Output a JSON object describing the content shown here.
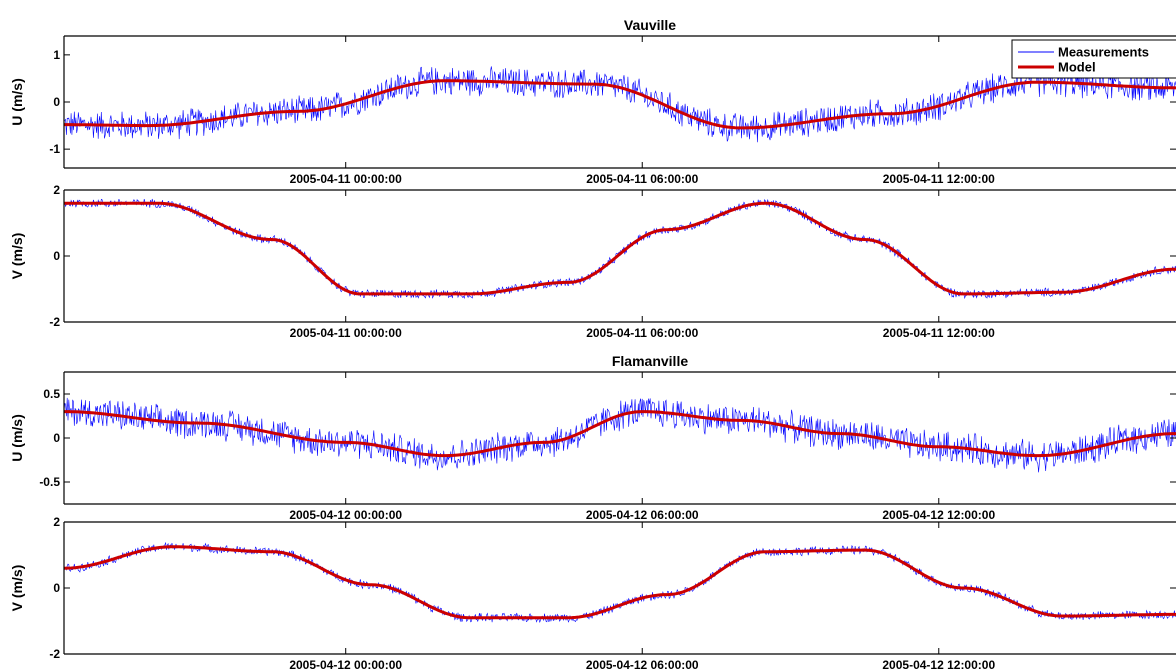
{
  "chart_data": [
    {
      "type": "line",
      "title": "Vauville",
      "ylabel": "U (m/s)",
      "ylim": [
        -1.4,
        1.4
      ],
      "yticks": [
        -1,
        0,
        1
      ],
      "xtick_labels": [
        "2005-04-11 00:00:00",
        "2005-04-11 06:00:00",
        "2005-04-11 12:00:00"
      ],
      "x_range_hours": [
        -5.7,
        16.8
      ],
      "legend": {
        "position": "top-right",
        "entries": [
          "Measurements",
          "Model"
        ]
      },
      "colors": {
        "Measurements": "#0000ff",
        "Model": "#cc0000"
      },
      "series": [
        {
          "name": "Model",
          "x_hours": [
            -5.7,
            -4,
            -1,
            2,
            5,
            8,
            11,
            14,
            16.8
          ],
          "values": [
            -0.48,
            -0.5,
            -0.2,
            0.45,
            0.38,
            -0.55,
            -0.25,
            0.42,
            0.3
          ]
        },
        {
          "name": "Measurements",
          "noise_amplitude": 0.35
        }
      ]
    },
    {
      "type": "line",
      "title": "",
      "ylabel": "V (m/s)",
      "ylim": [
        -2,
        2
      ],
      "yticks": [
        -2,
        0,
        2
      ],
      "xtick_labels": [
        "2005-04-11 00:00:00",
        "2005-04-11 06:00:00",
        "2005-04-11 12:00:00"
      ],
      "x_range_hours": [
        -5.7,
        16.8
      ],
      "series": [
        {
          "name": "Model",
          "x_hours": [
            -5.7,
            -3.8,
            -1.5,
            0.3,
            2.5,
            4.5,
            6.5,
            8.5,
            10.5,
            12.5,
            14.5,
            16.8
          ],
          "values": [
            1.6,
            1.6,
            0.5,
            -1.15,
            -1.15,
            -0.8,
            0.8,
            1.6,
            0.5,
            -1.15,
            -1.1,
            -0.4
          ]
        },
        {
          "name": "Measurements",
          "noise_amplitude": 0.15
        }
      ]
    },
    {
      "type": "line",
      "title": "Flamanville",
      "ylabel": "U (m/s)",
      "ylim": [
        -0.75,
        0.75
      ],
      "yticks": [
        -0.5,
        0,
        0.5
      ],
      "xtick_labels": [
        "2005-04-12 00:00:00",
        "2005-04-12 06:00:00",
        "2005-04-12 12:00:00"
      ],
      "x_range_hours": [
        -5.7,
        16.8
      ],
      "series": [
        {
          "name": "Model",
          "x_hours": [
            -5.7,
            -3,
            0,
            2,
            4,
            6,
            8,
            10,
            12,
            14,
            16.8
          ],
          "values": [
            0.3,
            0.17,
            -0.05,
            -0.2,
            -0.05,
            0.3,
            0.2,
            0.05,
            -0.1,
            -0.2,
            0.05
          ]
        },
        {
          "name": "Measurements",
          "noise_amplitude": 0.2
        }
      ]
    },
    {
      "type": "line",
      "title": "",
      "ylabel": "V (m/s)",
      "ylim": [
        -2,
        2
      ],
      "yticks": [
        -2,
        0,
        2
      ],
      "xtick_labels": [
        "2005-04-12 00:00:00",
        "2005-04-12 06:00:00",
        "2005-04-12 12:00:00"
      ],
      "x_range_hours": [
        -5.7,
        16.8
      ],
      "series": [
        {
          "name": "Model",
          "x_hours": [
            -5.7,
            -3.5,
            -1.5,
            0.5,
            2.5,
            4.5,
            6.5,
            8.5,
            10.5,
            12.5,
            14.5,
            16.8
          ],
          "values": [
            0.6,
            1.25,
            1.1,
            0.1,
            -0.9,
            -0.9,
            -0.2,
            1.1,
            1.15,
            0,
            -0.85,
            -0.8
          ]
        },
        {
          "name": "Measurements",
          "noise_amplitude": 0.15
        }
      ]
    }
  ]
}
